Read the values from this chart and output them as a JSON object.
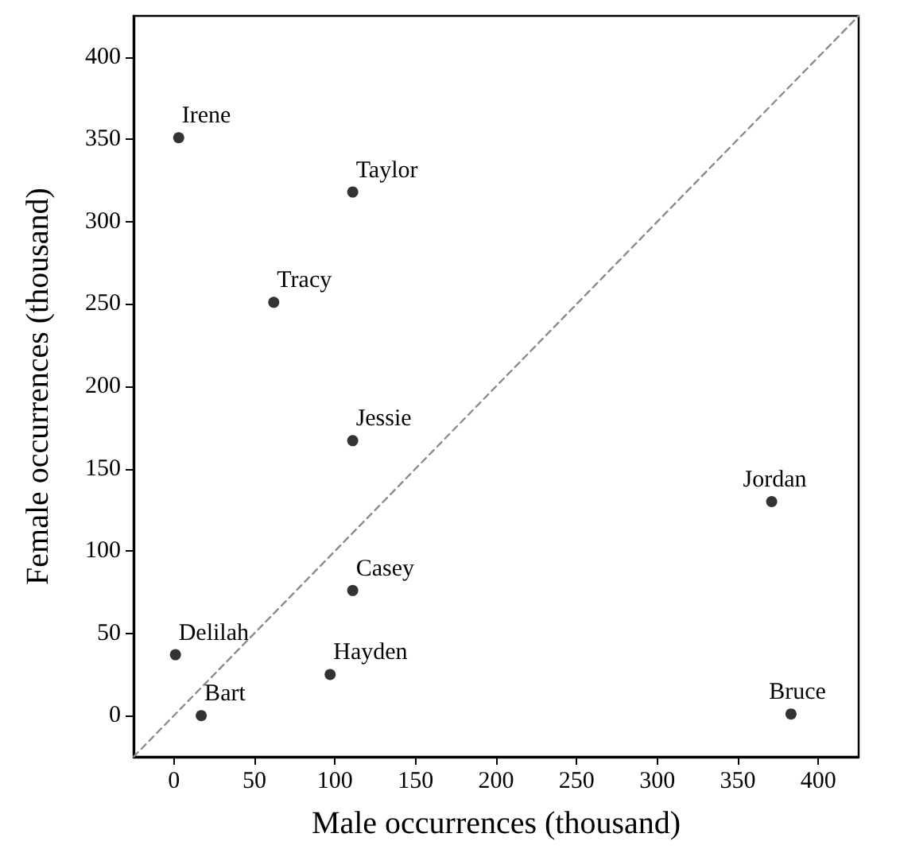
{
  "chart_data": {
    "type": "scatter",
    "xlabel": "Male occurrences (thousand)",
    "ylabel": "Female occurrences (thousand)",
    "xlim": [
      -25,
      425
    ],
    "ylim": [
      -25,
      425
    ],
    "xticks": [
      0,
      50,
      100,
      150,
      200,
      250,
      300,
      350,
      400
    ],
    "yticks": [
      0,
      50,
      100,
      150,
      200,
      250,
      300,
      350,
      400
    ],
    "grid": false,
    "marker": "circle",
    "series": [
      {
        "type": "line",
        "color": "#8c8c8c",
        "line_style": "dashed",
        "marker": "none",
        "x": [
          -25,
          425
        ],
        "values": [
          -25,
          425
        ]
      },
      {
        "color": "#000000",
        "x": [
          3,
          111,
          62,
          111,
          371,
          111,
          1,
          97,
          17,
          383
        ],
        "values": [
          351,
          318,
          251,
          167,
          130,
          76,
          37,
          25,
          0,
          1
        ]
      }
    ],
    "annotations": [
      {
        "text": "Irene",
        "x": 3,
        "y": 351
      },
      {
        "text": "Taylor",
        "x": 111,
        "y": 318
      },
      {
        "text": "Tracy",
        "x": 62,
        "y": 251
      },
      {
        "text": "Jessie",
        "x": 111,
        "y": 167
      },
      {
        "text": "Jordan",
        "x": 371,
        "y": 130
      },
      {
        "text": "Casey",
        "x": 111,
        "y": 76
      },
      {
        "text": "Delilah",
        "x": 1,
        "y": 37
      },
      {
        "text": "Hayden",
        "x": 97,
        "y": 25
      },
      {
        "text": "Bart",
        "x": 17,
        "y": 0
      },
      {
        "text": "Bruce",
        "x": 383,
        "y": 1
      }
    ]
  }
}
